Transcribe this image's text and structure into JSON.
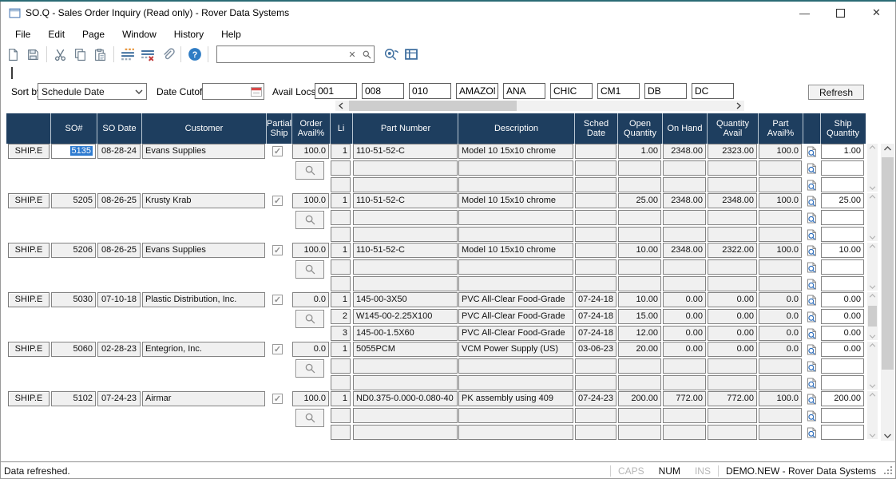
{
  "window": {
    "title": "SO.Q - Sales Order Inquiry (Read only) - Rover Data Systems",
    "controls": [
      "minimize",
      "maximize",
      "close"
    ]
  },
  "menu": {
    "items": [
      "File",
      "Edit",
      "Page",
      "Window",
      "History",
      "Help"
    ]
  },
  "toolbar": {
    "icons": [
      "new-document",
      "save",
      "cut",
      "copy",
      "paste",
      "insert-rows",
      "delete-rows",
      "attachment",
      "help"
    ],
    "search": {
      "value": "",
      "placeholder": ""
    },
    "right_icons": [
      "record-search",
      "grid-layout"
    ]
  },
  "filters": {
    "sort_by_label": "Sort by",
    "sort_by_value": "Schedule Date",
    "date_cutoff_label": "Date Cutoff",
    "date_cutoff_value": "",
    "avail_locs_label": "Avail Locs",
    "avail_locs": [
      "001",
      "008",
      "010",
      "AMAZON",
      "ANA",
      "CHIC",
      "CM1",
      "DB",
      "DC"
    ],
    "refresh_label": "Refresh"
  },
  "grid": {
    "headers": {
      "ship": "",
      "so": "SO#",
      "so_date": "SO Date",
      "customer": "Customer",
      "partial": "Partial Ship",
      "avail": "Order Avail%",
      "li": "Li",
      "part": "Part Number",
      "desc": "Description",
      "sched": "Sched Date",
      "open": "Open Quantity",
      "on_hand": "On Hand",
      "qty_avail": "Quantity Avail",
      "part_avail": "Part Avail%",
      "doc": "",
      "ship_qty": "Ship Quantity"
    },
    "groups": [
      {
        "ship": "SHIP.E",
        "so": "5135",
        "selected": true,
        "so_date": "08-28-24",
        "customer": "Evans Supplies",
        "partial": true,
        "avail": "100.0",
        "scroll_thumb": false,
        "lines": [
          {
            "li": "1",
            "part": "110-51-52-C",
            "desc": "Model 10 15x10 chrome",
            "sched": "",
            "open": "1.00",
            "on_hand": "2348.00",
            "qty_avail": "2323.00",
            "part_avail": "100.0",
            "ship_qty": "1.00"
          },
          {
            "li": "",
            "part": "",
            "desc": "",
            "sched": "",
            "open": "",
            "on_hand": "",
            "qty_avail": "",
            "part_avail": "",
            "ship_qty": ""
          },
          {
            "li": "",
            "part": "",
            "desc": "",
            "sched": "",
            "open": "",
            "on_hand": "",
            "qty_avail": "",
            "part_avail": "",
            "ship_qty": ""
          }
        ]
      },
      {
        "ship": "SHIP.E",
        "so": "5205",
        "selected": false,
        "so_date": "08-26-25",
        "customer": "Krusty Krab",
        "partial": true,
        "avail": "100.0",
        "scroll_thumb": false,
        "lines": [
          {
            "li": "1",
            "part": "110-51-52-C",
            "desc": "Model 10 15x10 chrome",
            "sched": "",
            "open": "25.00",
            "on_hand": "2348.00",
            "qty_avail": "2348.00",
            "part_avail": "100.0",
            "ship_qty": "25.00"
          },
          {
            "li": "",
            "part": "",
            "desc": "",
            "sched": "",
            "open": "",
            "on_hand": "",
            "qty_avail": "",
            "part_avail": "",
            "ship_qty": ""
          },
          {
            "li": "",
            "part": "",
            "desc": "",
            "sched": "",
            "open": "",
            "on_hand": "",
            "qty_avail": "",
            "part_avail": "",
            "ship_qty": ""
          }
        ]
      },
      {
        "ship": "SHIP.E",
        "so": "5206",
        "selected": false,
        "so_date": "08-26-25",
        "customer": "Evans Supplies",
        "partial": true,
        "avail": "100.0",
        "scroll_thumb": false,
        "lines": [
          {
            "li": "1",
            "part": "110-51-52-C",
            "desc": "Model 10 15x10 chrome",
            "sched": "",
            "open": "10.00",
            "on_hand": "2348.00",
            "qty_avail": "2322.00",
            "part_avail": "100.0",
            "ship_qty": "10.00"
          },
          {
            "li": "",
            "part": "",
            "desc": "",
            "sched": "",
            "open": "",
            "on_hand": "",
            "qty_avail": "",
            "part_avail": "",
            "ship_qty": ""
          },
          {
            "li": "",
            "part": "",
            "desc": "",
            "sched": "",
            "open": "",
            "on_hand": "",
            "qty_avail": "",
            "part_avail": "",
            "ship_qty": ""
          }
        ]
      },
      {
        "ship": "SHIP.E",
        "so": "5030",
        "selected": false,
        "so_date": "07-10-18",
        "customer": "Plastic Distribution, Inc.",
        "partial": true,
        "avail": "0.0",
        "scroll_thumb": true,
        "lines": [
          {
            "li": "1",
            "part": "145-00-3X50",
            "desc": "PVC All-Clear Food-Grade",
            "sched": "07-24-18",
            "open": "10.00",
            "on_hand": "0.00",
            "qty_avail": "0.00",
            "part_avail": "0.0",
            "ship_qty": "0.00"
          },
          {
            "li": "2",
            "part": "W145-00-2.25X100",
            "desc": "PVC All-Clear Food-Grade",
            "sched": "07-24-18",
            "open": "15.00",
            "on_hand": "0.00",
            "qty_avail": "0.00",
            "part_avail": "0.0",
            "ship_qty": "0.00"
          },
          {
            "li": "3",
            "part": "145-00-1.5X60",
            "desc": "PVC All-Clear Food-Grade",
            "sched": "07-24-18",
            "open": "12.00",
            "on_hand": "0.00",
            "qty_avail": "0.00",
            "part_avail": "0.0",
            "ship_qty": "0.00"
          }
        ]
      },
      {
        "ship": "SHIP.E",
        "so": "5060",
        "selected": false,
        "so_date": "02-28-23",
        "customer": "Entegrion, Inc.",
        "partial": true,
        "avail": "0.0",
        "scroll_thumb": false,
        "lines": [
          {
            "li": "1",
            "part": "5055PCM",
            "desc": "VCM Power Supply (US)",
            "sched": "03-06-23",
            "open": "20.00",
            "on_hand": "0.00",
            "qty_avail": "0.00",
            "part_avail": "0.0",
            "ship_qty": "0.00"
          },
          {
            "li": "",
            "part": "",
            "desc": "",
            "sched": "",
            "open": "",
            "on_hand": "",
            "qty_avail": "",
            "part_avail": "",
            "ship_qty": ""
          },
          {
            "li": "",
            "part": "",
            "desc": "",
            "sched": "",
            "open": "",
            "on_hand": "",
            "qty_avail": "",
            "part_avail": "",
            "ship_qty": ""
          }
        ]
      },
      {
        "ship": "SHIP.E",
        "so": "5102",
        "selected": false,
        "so_date": "07-24-23",
        "customer": "Airmar",
        "partial": true,
        "avail": "100.0",
        "scroll_thumb": false,
        "lines": [
          {
            "li": "1",
            "part": "ND0.375-0.000-0.080-40",
            "desc": "PK assembly using 409",
            "sched": "07-24-23",
            "open": "200.00",
            "on_hand": "772.00",
            "qty_avail": "772.00",
            "part_avail": "100.0",
            "ship_qty": "200.00"
          },
          {
            "li": "",
            "part": "",
            "desc": "",
            "sched": "",
            "open": "",
            "on_hand": "",
            "qty_avail": "",
            "part_avail": "",
            "ship_qty": ""
          },
          {
            "li": "",
            "part": "",
            "desc": "",
            "sched": "",
            "open": "",
            "on_hand": "",
            "qty_avail": "",
            "part_avail": "",
            "ship_qty": ""
          }
        ]
      }
    ]
  },
  "status": {
    "message": "Data refreshed.",
    "caps": "CAPS",
    "num": "NUM",
    "ins": "INS",
    "company": "DEMO.NEW - Rover Data Systems"
  },
  "colors": {
    "header_bg": "#1e3e5f",
    "selection": "#2e7bd0",
    "accent_line": "#2a6b75"
  }
}
